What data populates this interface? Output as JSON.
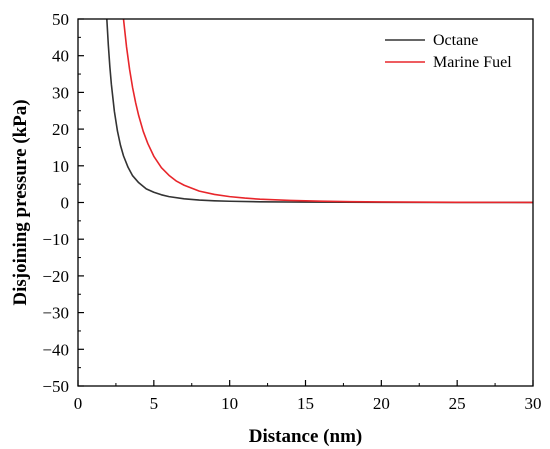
{
  "chart_data": {
    "type": "line",
    "title": "",
    "xlabel": "Distance (nm)",
    "ylabel": "Disjoining pressure (kPa)",
    "xlim": [
      0,
      30
    ],
    "ylim": [
      -50,
      50
    ],
    "xticks": [
      0,
      5,
      10,
      15,
      20,
      25,
      30
    ],
    "xtick_labels": [
      "0",
      "5",
      "10",
      "15",
      "20",
      "25",
      "30"
    ],
    "yticks": [
      -50,
      -40,
      -30,
      -20,
      -10,
      0,
      10,
      20,
      30,
      40,
      50
    ],
    "ytick_labels": [
      "−50",
      "−40",
      "−30",
      "−20",
      "−10",
      "0",
      "10",
      "20",
      "30",
      "40",
      "50"
    ],
    "grid": false,
    "legend_position": "top-right",
    "series": [
      {
        "name": "Octane",
        "color": "#333333",
        "x": [
          1.9,
          2.0,
          2.1,
          2.2,
          2.4,
          2.6,
          2.8,
          3.0,
          3.3,
          3.6,
          4.0,
          4.5,
          5.0,
          5.5,
          6.0,
          7.0,
          8.0,
          9.0,
          10.0,
          12.0,
          15.0,
          20.0,
          25.0,
          30.0
        ],
        "values": [
          50.0,
          42.9,
          37.0,
          32.2,
          24.8,
          19.5,
          15.6,
          12.7,
          9.6,
          7.3,
          5.4,
          3.7,
          2.8,
          2.1,
          1.6,
          1.0,
          0.67,
          0.47,
          0.34,
          0.2,
          0.1,
          0.04,
          0.02,
          0.01
        ]
      },
      {
        "name": "Marine Fuel",
        "color": "#e8262b",
        "x": [
          3.0,
          3.2,
          3.4,
          3.6,
          3.8,
          4.0,
          4.3,
          4.6,
          5.0,
          5.5,
          6.0,
          6.5,
          7.0,
          8.0,
          9.0,
          10.0,
          11.0,
          12.0,
          14.0,
          16.0,
          18.0,
          20.0,
          25.0,
          30.0
        ],
        "values": [
          50.0,
          42.4,
          36.3,
          31.3,
          27.2,
          23.7,
          19.4,
          16.1,
          12.6,
          9.5,
          7.4,
          5.8,
          4.7,
          3.1,
          2.2,
          1.6,
          1.2,
          0.9,
          0.55,
          0.35,
          0.22,
          0.15,
          0.06,
          0.02
        ]
      }
    ]
  }
}
